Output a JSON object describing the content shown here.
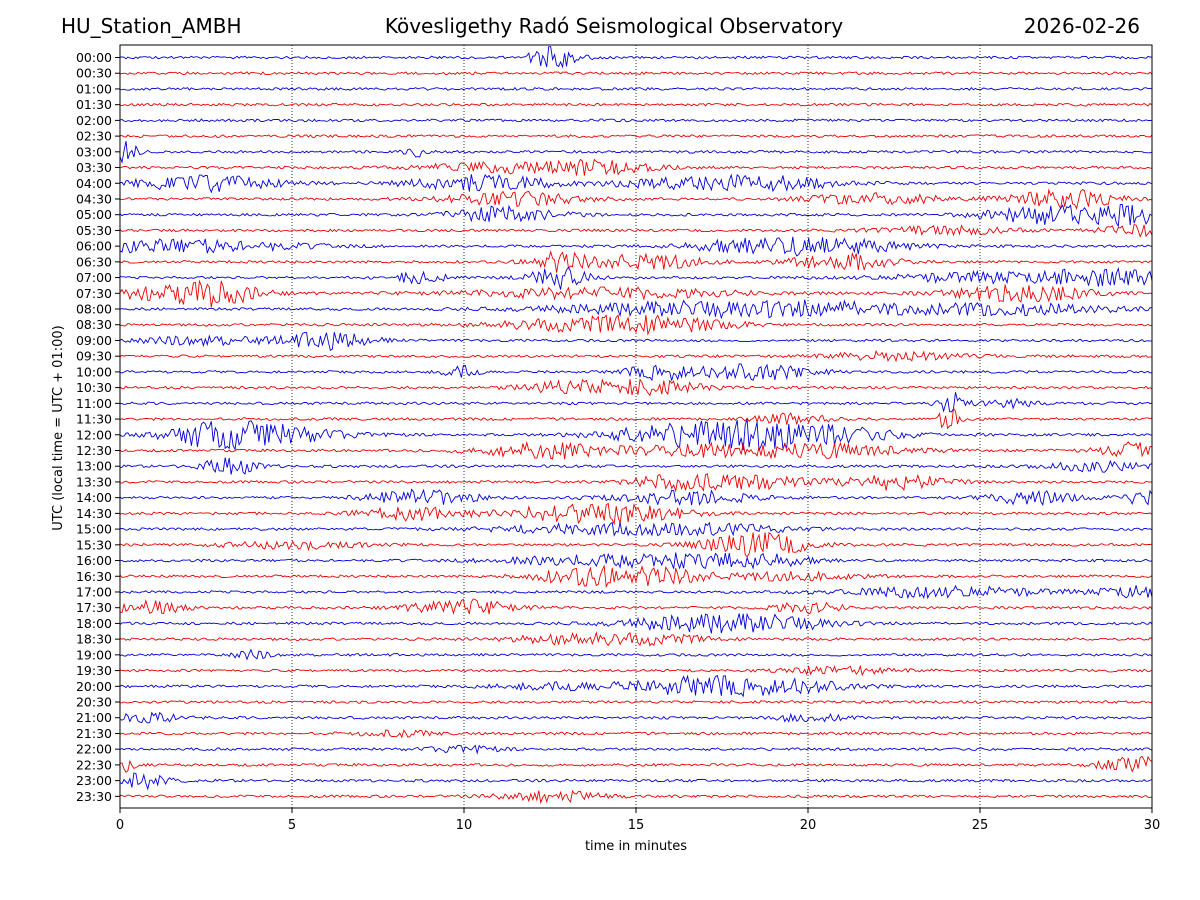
{
  "header": {
    "station": "HU_Station_AMBH",
    "title": "Kövesligethy Radó Seismological Observatory",
    "date": "2026-02-26"
  },
  "chart_data": {
    "type": "line",
    "title": "Kövesligethy Radó Seismological Observatory",
    "xlabel": "time in minutes",
    "ylabel": "UTC (local time = UTC + 01:00)",
    "xlim": [
      0,
      30
    ],
    "xticks": [
      0,
      5,
      10,
      15,
      20,
      25,
      30
    ],
    "grid": "vertical dotted",
    "colors": [
      "#0000dd",
      "#ee0000"
    ],
    "rows": [
      {
        "label": "00:00",
        "bursts": [
          [
            12.6,
            0.7,
            4
          ]
        ]
      },
      {
        "label": "00:30",
        "bursts": []
      },
      {
        "label": "01:00",
        "bursts": []
      },
      {
        "label": "01:30",
        "bursts": []
      },
      {
        "label": "02:00",
        "bursts": []
      },
      {
        "label": "02:30",
        "bursts": []
      },
      {
        "label": "03:00",
        "bursts": [
          [
            0.1,
            0.4,
            4
          ],
          [
            8.6,
            0.3,
            2
          ]
        ]
      },
      {
        "label": "03:30",
        "bursts": [
          [
            11.2,
            2.5,
            2
          ],
          [
            14.0,
            1.5,
            2
          ]
        ]
      },
      {
        "label": "04:00",
        "bursts": [
          [
            2.5,
            2.0,
            3
          ],
          [
            10.5,
            2.0,
            3
          ],
          [
            17.0,
            3.0,
            2
          ],
          [
            19.0,
            2.0,
            1.5
          ]
        ]
      },
      {
        "label": "04:30",
        "bursts": [
          [
            11.5,
            2.0,
            2.5
          ],
          [
            22.0,
            2.0,
            2
          ],
          [
            27.5,
            1.5,
            3.5
          ]
        ]
      },
      {
        "label": "05:00",
        "bursts": [
          [
            11.2,
            1.5,
            3
          ],
          [
            27.2,
            2.0,
            3.5
          ],
          [
            29.5,
            1.2,
            3
          ]
        ]
      },
      {
        "label": "05:30",
        "bursts": [
          [
            24.0,
            2.0,
            1.5
          ],
          [
            29.5,
            1.0,
            2
          ]
        ]
      },
      {
        "label": "06:00",
        "bursts": [
          [
            1.5,
            3.5,
            2.5
          ],
          [
            18.5,
            2.0,
            2.5
          ],
          [
            21.0,
            2.0,
            2.5
          ]
        ]
      },
      {
        "label": "06:30",
        "bursts": [
          [
            12.7,
            0.8,
            4
          ],
          [
            15.3,
            1.5,
            3
          ],
          [
            21.0,
            1.5,
            3
          ]
        ]
      },
      {
        "label": "07:00",
        "bursts": [
          [
            8.7,
            0.8,
            2
          ],
          [
            12.8,
            0.8,
            4.5
          ],
          [
            25.5,
            3.0,
            2
          ],
          [
            29.0,
            2.0,
            2.5
          ]
        ]
      },
      {
        "label": "07:30",
        "bursts": [
          [
            1.0,
            2.0,
            2
          ],
          [
            2.8,
            1.2,
            4
          ],
          [
            14.0,
            4.0,
            2
          ],
          [
            26.2,
            2.0,
            3
          ]
        ]
      },
      {
        "label": "08:00",
        "bursts": [
          [
            16.5,
            4.0,
            2.5
          ],
          [
            20.5,
            3.0,
            2
          ],
          [
            26.0,
            3.0,
            2
          ]
        ]
      },
      {
        "label": "08:30",
        "bursts": [
          [
            13.5,
            2.5,
            2.5
          ],
          [
            16.0,
            2.0,
            2
          ]
        ]
      },
      {
        "label": "09:00",
        "bursts": [
          [
            6.1,
            1.2,
            3.5
          ],
          [
            2.5,
            2.0,
            1.5
          ]
        ]
      },
      {
        "label": "09:30",
        "bursts": [
          [
            22.5,
            2.0,
            1.5
          ]
        ]
      },
      {
        "label": "10:00",
        "bursts": [
          [
            15.8,
            1.0,
            3
          ],
          [
            18.5,
            1.5,
            3
          ],
          [
            9.9,
            0.5,
            2.5
          ]
        ]
      },
      {
        "label": "10:30",
        "bursts": [
          [
            13.2,
            1.5,
            2.5
          ],
          [
            15.5,
            1.5,
            2.5
          ]
        ]
      },
      {
        "label": "11:00",
        "bursts": [
          [
            24.2,
            0.4,
            4
          ],
          [
            26.0,
            0.8,
            1.5
          ]
        ]
      },
      {
        "label": "11:30",
        "bursts": [
          [
            24.1,
            0.3,
            4.5
          ],
          [
            19.5,
            1.0,
            2
          ]
        ]
      },
      {
        "label": "12:00",
        "bursts": [
          [
            2.8,
            1.5,
            4
          ],
          [
            4.5,
            2.0,
            3
          ],
          [
            19.8,
            2.5,
            4
          ],
          [
            17.5,
            2.0,
            3
          ],
          [
            15.5,
            2.0,
            2
          ]
        ]
      },
      {
        "label": "12:30",
        "bursts": [
          [
            12.5,
            2.0,
            3
          ],
          [
            20.5,
            2.5,
            2.5
          ],
          [
            29.5,
            1.0,
            3
          ],
          [
            17.0,
            2.0,
            2
          ]
        ]
      },
      {
        "label": "13:00",
        "bursts": [
          [
            3.2,
            0.8,
            3.5
          ],
          [
            28.5,
            1.5,
            2
          ]
        ]
      },
      {
        "label": "13:30",
        "bursts": [
          [
            16.2,
            1.2,
            3
          ],
          [
            18.5,
            1.5,
            2.5
          ],
          [
            22.5,
            1.5,
            3
          ]
        ]
      },
      {
        "label": "14:00",
        "bursts": [
          [
            8.8,
            1.5,
            3
          ],
          [
            16.5,
            2.0,
            2.5
          ],
          [
            26.5,
            1.2,
            2.5
          ],
          [
            29.7,
            0.6,
            3.5
          ]
        ]
      },
      {
        "label": "14:30",
        "bursts": [
          [
            8.5,
            1.5,
            2.5
          ],
          [
            13.2,
            2.0,
            3
          ],
          [
            15.2,
            1.5,
            2.5
          ]
        ]
      },
      {
        "label": "15:00",
        "bursts": [
          [
            14.0,
            3.0,
            2
          ],
          [
            17.5,
            2.0,
            1.5
          ]
        ]
      },
      {
        "label": "15:30",
        "bursts": [
          [
            18.5,
            1.5,
            4.5
          ],
          [
            5.0,
            2.0,
            1.5
          ]
        ]
      },
      {
        "label": "16:00",
        "bursts": [
          [
            15.8,
            2.0,
            2.5
          ],
          [
            18.5,
            1.5,
            2.5
          ],
          [
            12.5,
            2.0,
            1.5
          ]
        ]
      },
      {
        "label": "16:30",
        "bursts": [
          [
            13.5,
            1.5,
            3
          ],
          [
            15.5,
            1.5,
            3
          ],
          [
            19.5,
            2.0,
            1.5
          ]
        ]
      },
      {
        "label": "17:00",
        "bursts": [
          [
            24.0,
            3.0,
            2
          ],
          [
            29.5,
            1.0,
            2.5
          ]
        ]
      },
      {
        "label": "17:30",
        "bursts": [
          [
            0.8,
            1.0,
            2.5
          ],
          [
            10.0,
            1.5,
            3
          ],
          [
            20.0,
            1.0,
            2
          ]
        ]
      },
      {
        "label": "18:00",
        "bursts": [
          [
            16.5,
            2.0,
            2.5
          ],
          [
            19.0,
            2.0,
            2.5
          ]
        ]
      },
      {
        "label": "18:30",
        "bursts": [
          [
            13.0,
            1.5,
            2
          ],
          [
            15.5,
            1.5,
            2
          ]
        ]
      },
      {
        "label": "19:00",
        "bursts": [
          [
            3.8,
            0.5,
            1.5
          ]
        ]
      },
      {
        "label": "19:30",
        "bursts": [
          [
            21.0,
            1.5,
            1.5
          ]
        ]
      },
      {
        "label": "20:00",
        "bursts": [
          [
            16.5,
            1.5,
            3
          ],
          [
            19.0,
            2.0,
            3
          ],
          [
            13.0,
            2.0,
            1.5
          ]
        ]
      },
      {
        "label": "20:30",
        "bursts": []
      },
      {
        "label": "21:00",
        "bursts": [
          [
            0.9,
            0.8,
            2.5
          ],
          [
            20.0,
            1.0,
            1.5
          ]
        ]
      },
      {
        "label": "21:30",
        "bursts": [
          [
            8.0,
            1.0,
            1.2
          ]
        ]
      },
      {
        "label": "22:00",
        "bursts": [
          [
            10.0,
            1.0,
            1.2
          ]
        ]
      },
      {
        "label": "22:30",
        "bursts": [
          [
            29.5,
            1.0,
            3
          ],
          [
            0.1,
            0.3,
            3
          ]
        ]
      },
      {
        "label": "23:00",
        "bursts": [
          [
            0.6,
            0.8,
            3
          ]
        ]
      },
      {
        "label": "23:30",
        "bursts": [
          [
            12.5,
            1.5,
            2
          ]
        ]
      }
    ]
  }
}
